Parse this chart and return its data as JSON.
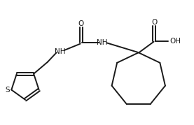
{
  "bg_color": "#ffffff",
  "line_color": "#1a1a1a",
  "line_width": 1.4,
  "font_size": 7.5,
  "fig_width": 2.77,
  "fig_height": 1.79,
  "dpi": 100,
  "xlim": [
    0,
    10
  ],
  "ylim": [
    0,
    6.5
  ]
}
